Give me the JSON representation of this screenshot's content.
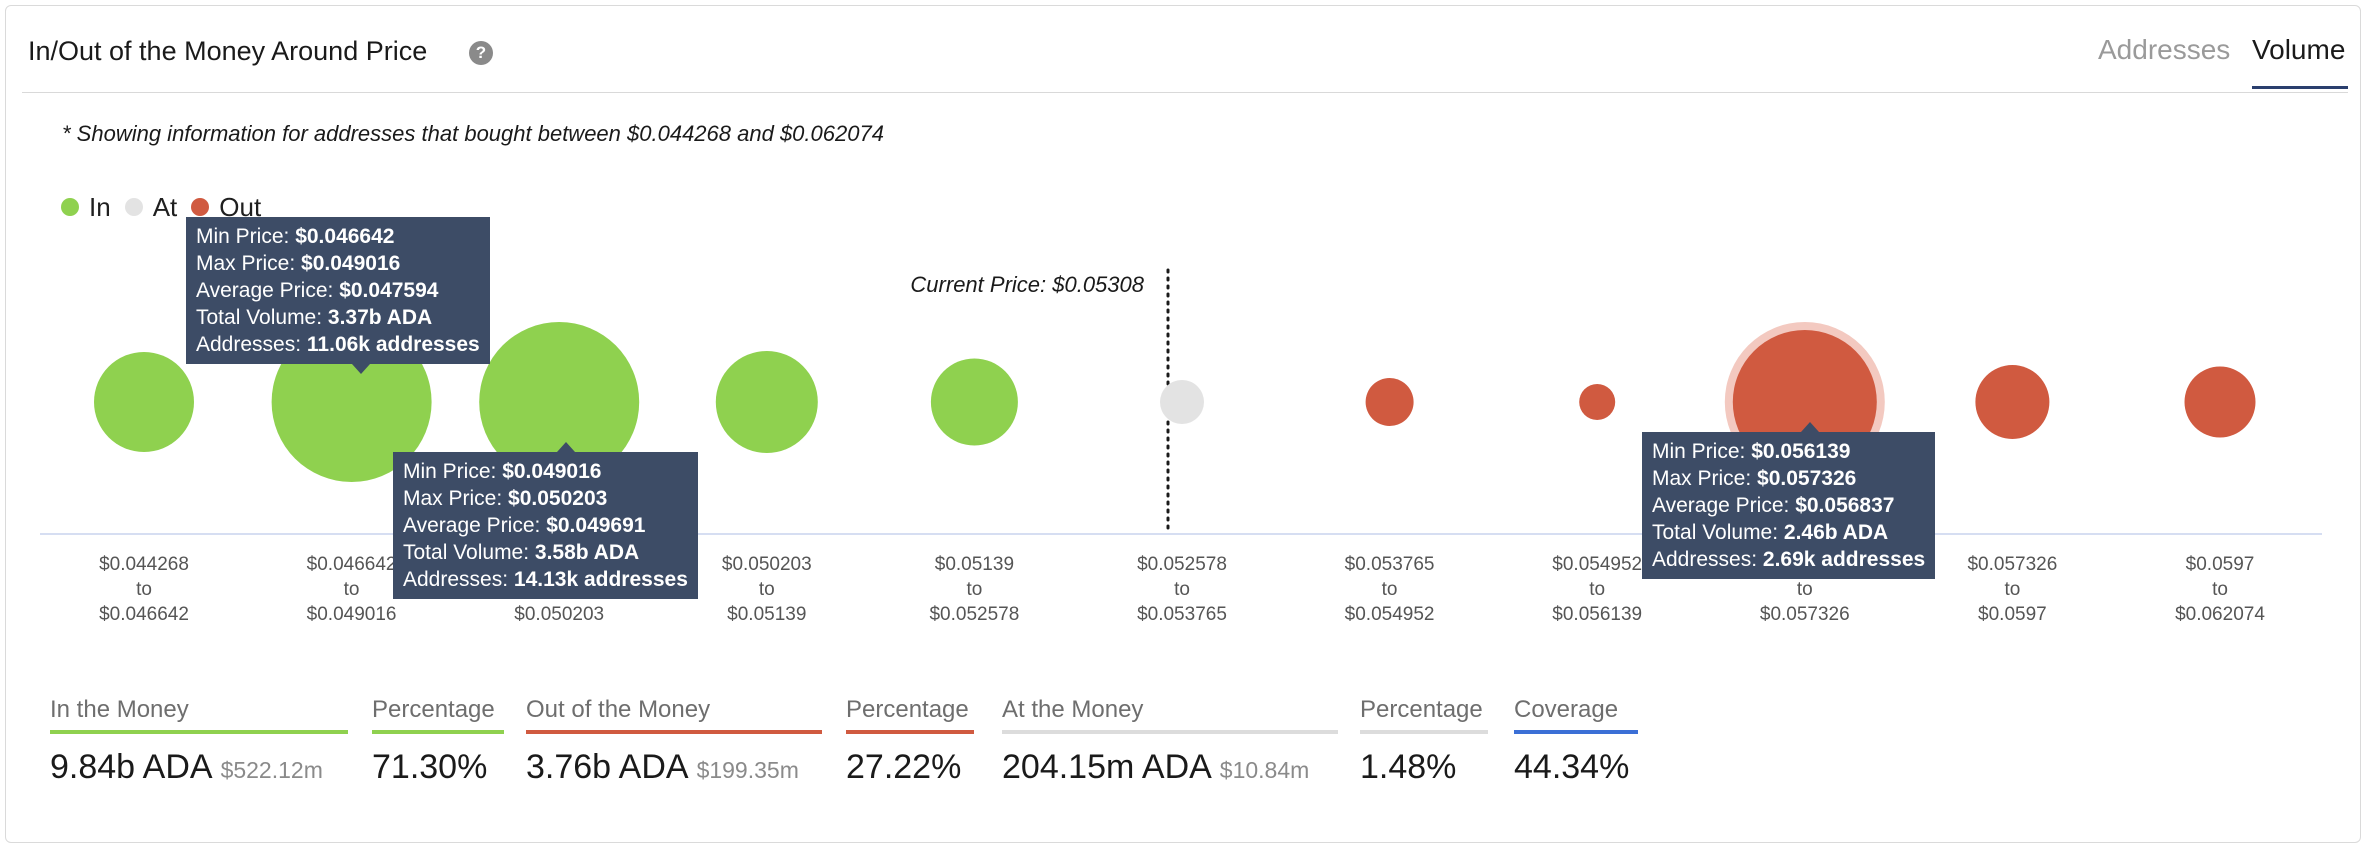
{
  "header": {
    "title": "In/Out of the Money Around Price",
    "tabs": [
      {
        "label": "Addresses",
        "active": false
      },
      {
        "label": "Volume",
        "active": true
      }
    ]
  },
  "note": "* Showing information for addresses that bought between $0.044268 and $0.062074",
  "legend": [
    {
      "label": "In",
      "color": "#8fd14f"
    },
    {
      "label": "At",
      "color": "#e3e3e3"
    },
    {
      "label": "Out",
      "color": "#d05a40"
    }
  ],
  "chart_data": {
    "type": "scatter",
    "title": "",
    "xlabel": "",
    "ylabel": "",
    "current_price_label": "Current Price: $0.05308",
    "current_price": 0.05308,
    "bins": [
      {
        "from": "$0.044268",
        "to_word": "to",
        "to": "$0.046642",
        "status": "In",
        "size": 1.0
      },
      {
        "from": "$0.046642",
        "to_word": "to",
        "to": "$0.049016",
        "status": "In",
        "size": 1.6
      },
      {
        "from": "$0.049016",
        "to_word": "to",
        "to": "$0.050203",
        "status": "In",
        "size": 1.6
      },
      {
        "from": "$0.050203",
        "to_word": "to",
        "to": "$0.05139",
        "status": "In",
        "size": 1.02
      },
      {
        "from": "$0.05139",
        "to_word": "to",
        "to": "$0.052578",
        "status": "In",
        "size": 0.87
      },
      {
        "from": "$0.052578",
        "to_word": "to",
        "to": "$0.053765",
        "status": "At",
        "size": 0.44
      },
      {
        "from": "$0.053765",
        "to_word": "to",
        "to": "$0.054952",
        "status": "Out",
        "size": 0.48
      },
      {
        "from": "$0.054952",
        "to_word": "to",
        "to": "$0.056139",
        "status": "Out",
        "size": 0.36
      },
      {
        "from": "$0.056139",
        "to_word": "to",
        "to": "$0.057326",
        "status": "Out",
        "size": 1.44
      },
      {
        "from": "$0.057326",
        "to_word": "to",
        "to": "$0.0597",
        "status": "Out",
        "size": 0.74
      },
      {
        "from": "$0.0597",
        "to_word": "to",
        "to": "$0.062074",
        "status": "Out",
        "size": 0.71
      }
    ],
    "highlighted_bins": [
      8
    ],
    "colors": {
      "In": "#8fd14f",
      "At": "#e3e3e3",
      "Out": "#d05a40",
      "axis": "#c9d4ee",
      "highlight_halo": "#f3c9c0"
    }
  },
  "tooltips": [
    {
      "bin": 1,
      "rows": [
        {
          "label": "Min Price:",
          "value": "$0.046642"
        },
        {
          "label": "Max Price:",
          "value": "$0.049016"
        },
        {
          "label": "Average Price:",
          "value": "$0.047594"
        },
        {
          "label": "Total Volume:",
          "value": "3.37b ADA"
        },
        {
          "label": "Addresses:",
          "value": "11.06k addresses"
        }
      ]
    },
    {
      "bin": 2,
      "rows": [
        {
          "label": "Min Price:",
          "value": "$0.049016"
        },
        {
          "label": "Max Price:",
          "value": "$0.050203"
        },
        {
          "label": "Average Price:",
          "value": "$0.049691"
        },
        {
          "label": "Total Volume:",
          "value": "3.58b ADA"
        },
        {
          "label": "Addresses:",
          "value": "14.13k addresses"
        }
      ]
    },
    {
      "bin": 8,
      "rows": [
        {
          "label": "Min Price:",
          "value": "$0.056139"
        },
        {
          "label": "Max Price:",
          "value": "$0.057326"
        },
        {
          "label": "Average Price:",
          "value": "$0.056837"
        },
        {
          "label": "Total Volume:",
          "value": "2.46b ADA"
        },
        {
          "label": "Addresses:",
          "value": "2.69k addresses"
        }
      ]
    }
  ],
  "stats": [
    {
      "label": "In the Money",
      "value": "9.84b ADA",
      "sub": "$522.12m",
      "bar_color": "#8fd14f"
    },
    {
      "label": "Percentage",
      "value": "71.30%",
      "sub": "",
      "bar_color": "#8fd14f"
    },
    {
      "label": "Out of the Money",
      "value": "3.76b ADA",
      "sub": "$199.35m",
      "bar_color": "#d05a40"
    },
    {
      "label": "Percentage",
      "value": "27.22%",
      "sub": "",
      "bar_color": "#d05a40"
    },
    {
      "label": "At the Money",
      "value": "204.15m ADA",
      "sub": "$10.84m",
      "bar_color": "#dcdcdc"
    },
    {
      "label": "Percentage",
      "value": "1.48%",
      "sub": "",
      "bar_color": "#dcdcdc"
    },
    {
      "label": "Coverage",
      "value": "44.34%",
      "sub": "",
      "bar_color": "#3b6fd6"
    }
  ]
}
